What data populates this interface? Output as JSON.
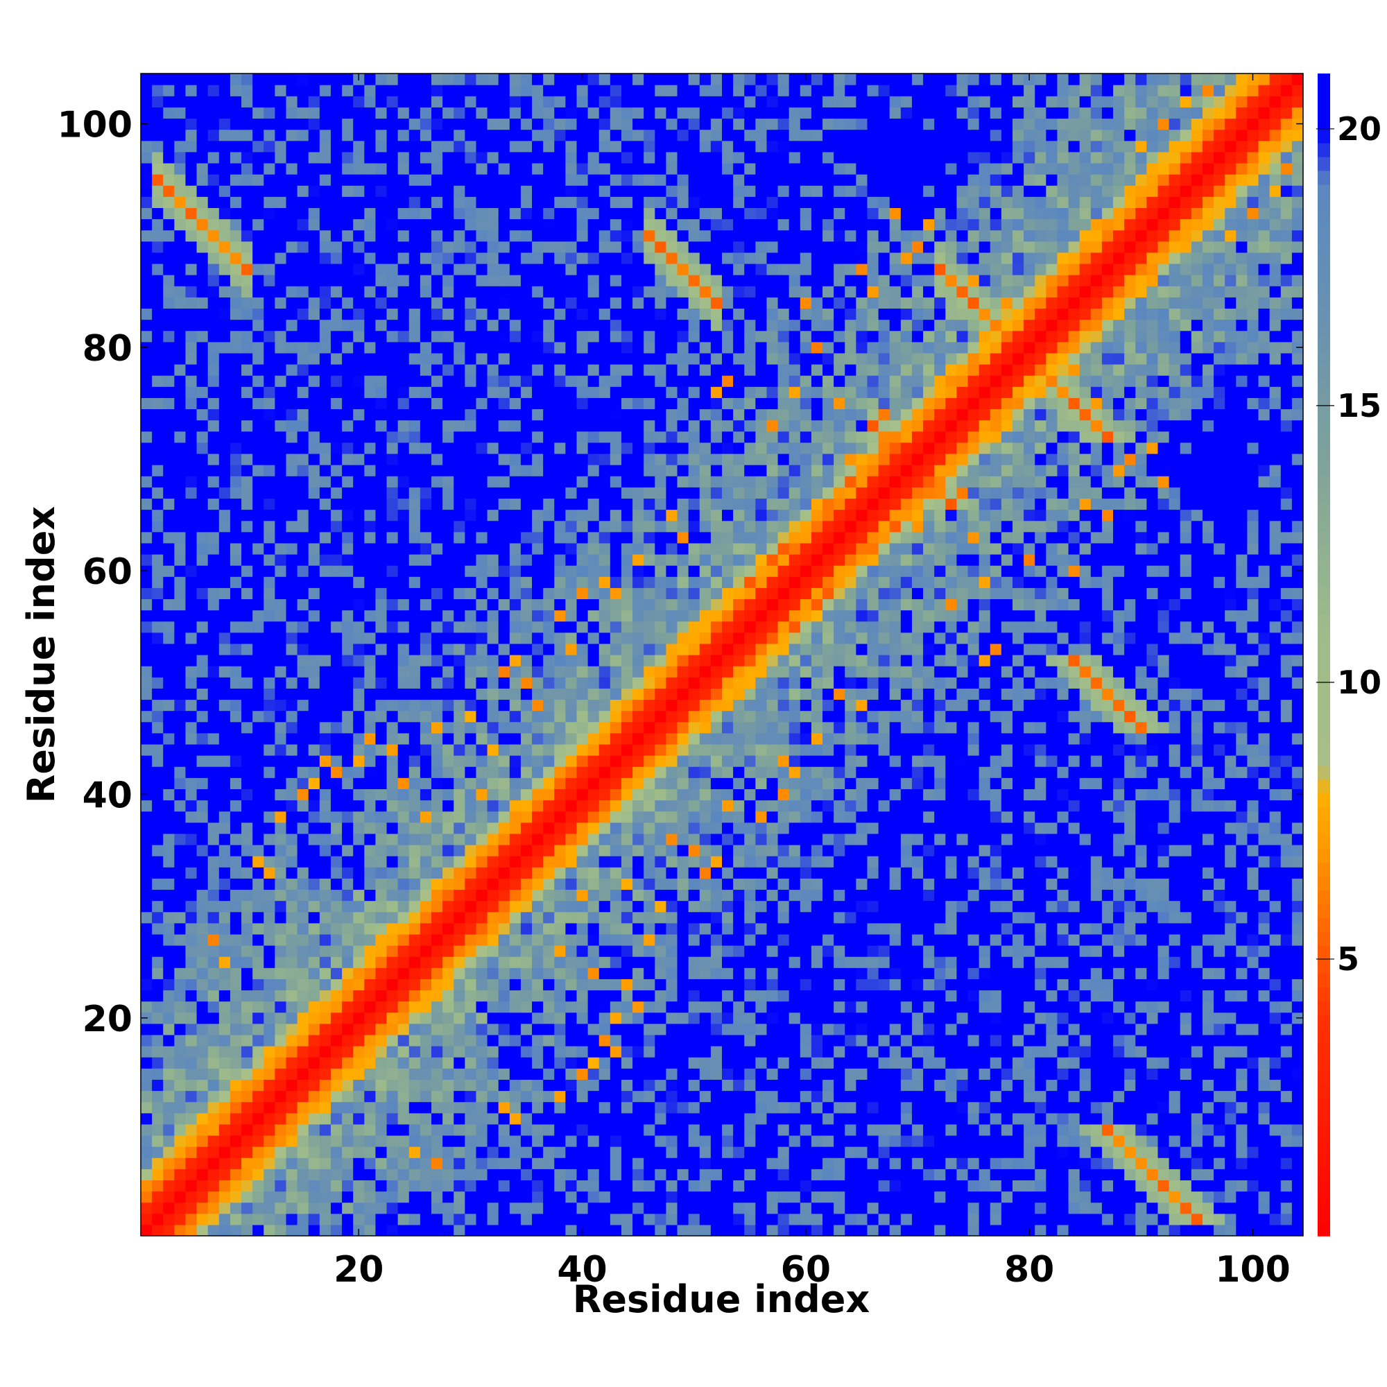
{
  "chart_data": {
    "type": "heatmap",
    "title": "",
    "xlabel": "Residue index",
    "ylabel": "Residue index",
    "n_residues": 104,
    "xlim": [
      0.5,
      104.5
    ],
    "ylim": [
      0.5,
      104.5
    ],
    "x_ticks": [
      20,
      40,
      60,
      80,
      100
    ],
    "y_ticks": [
      20,
      40,
      60,
      80,
      100
    ],
    "colorbar": {
      "vmin": 0,
      "vmax": 21,
      "ticks": [
        5,
        10,
        15,
        20
      ],
      "stops": [
        {
          "value": 0,
          "color": "#ff0000"
        },
        {
          "value": 2,
          "color": "#ff1a00"
        },
        {
          "value": 4,
          "color": "#ff3300"
        },
        {
          "value": 5.5,
          "color": "#ff6600"
        },
        {
          "value": 7,
          "color": "#ff9900"
        },
        {
          "value": 8,
          "color": "#ffb000"
        },
        {
          "value": 8.5,
          "color": "#a8bf88"
        },
        {
          "value": 11,
          "color": "#9dbb8a"
        },
        {
          "value": 14,
          "color": "#7fa39a"
        },
        {
          "value": 16.5,
          "color": "#6a91b0"
        },
        {
          "value": 19,
          "color": "#5b87c0"
        },
        {
          "value": 20,
          "color": "#0000ff"
        }
      ]
    },
    "cutoff_value": 20,
    "diagonal_band": {
      "contact": 2,
      "near": 5
    },
    "secondary_structure_contacts": [
      {
        "type": "antiparallel",
        "sum": 97,
        "i_range": [
          2,
          10
        ],
        "j_range": [
          87,
          95
        ]
      },
      {
        "type": "antiparallel",
        "sum": 136,
        "i_range": [
          46,
          52
        ],
        "j_range": [
          84,
          90
        ]
      },
      {
        "type": "antiparallel",
        "sum": 159,
        "i_range": [
          72,
          79
        ],
        "j_range": [
          80,
          87
        ]
      },
      {
        "type": "antiparallel",
        "sum": 139,
        "i_range": [
          66,
          70
        ],
        "j_range": [
          69,
          73
        ]
      },
      {
        "type": "parallel",
        "offset": 3,
        "i_range": [
          28,
          62
        ]
      },
      {
        "type": "parallel",
        "offset": 4,
        "i_range": [
          55,
          68
        ]
      }
    ],
    "scattered_contacts": [
      [
        17,
        43
      ],
      [
        18,
        42
      ],
      [
        21,
        45
      ],
      [
        31,
        40
      ],
      [
        32,
        44
      ],
      [
        35,
        50
      ],
      [
        36,
        48
      ],
      [
        39,
        53
      ],
      [
        15,
        40
      ],
      [
        16,
        41
      ],
      [
        20,
        43
      ],
      [
        24,
        41
      ],
      [
        11,
        34
      ],
      [
        12,
        33
      ],
      [
        13,
        38
      ],
      [
        26,
        38
      ],
      [
        30,
        47
      ],
      [
        33,
        51
      ],
      [
        34,
        52
      ],
      [
        43,
        58
      ],
      [
        45,
        61
      ],
      [
        48,
        65
      ],
      [
        49,
        63
      ],
      [
        57,
        73
      ],
      [
        59,
        76
      ],
      [
        62,
        66
      ],
      [
        63,
        75
      ],
      [
        64,
        70
      ],
      [
        67,
        74
      ],
      [
        52,
        76
      ],
      [
        53,
        77
      ],
      [
        69,
        88
      ],
      [
        70,
        89
      ],
      [
        71,
        91
      ],
      [
        75,
        86
      ],
      [
        77,
        80
      ],
      [
        78,
        84
      ],
      [
        79,
        82
      ],
      [
        86,
        91
      ],
      [
        89,
        93
      ],
      [
        90,
        98
      ],
      [
        92,
        100
      ],
      [
        94,
        102
      ],
      [
        96,
        103
      ],
      [
        7,
        27
      ],
      [
        8,
        25
      ],
      [
        23,
        44
      ],
      [
        27,
        46
      ],
      [
        38,
        56
      ],
      [
        40,
        58
      ],
      [
        42,
        59
      ],
      [
        60,
        84
      ],
      [
        61,
        80
      ],
      [
        65,
        87
      ],
      [
        66,
        85
      ],
      [
        68,
        92
      ]
    ]
  }
}
